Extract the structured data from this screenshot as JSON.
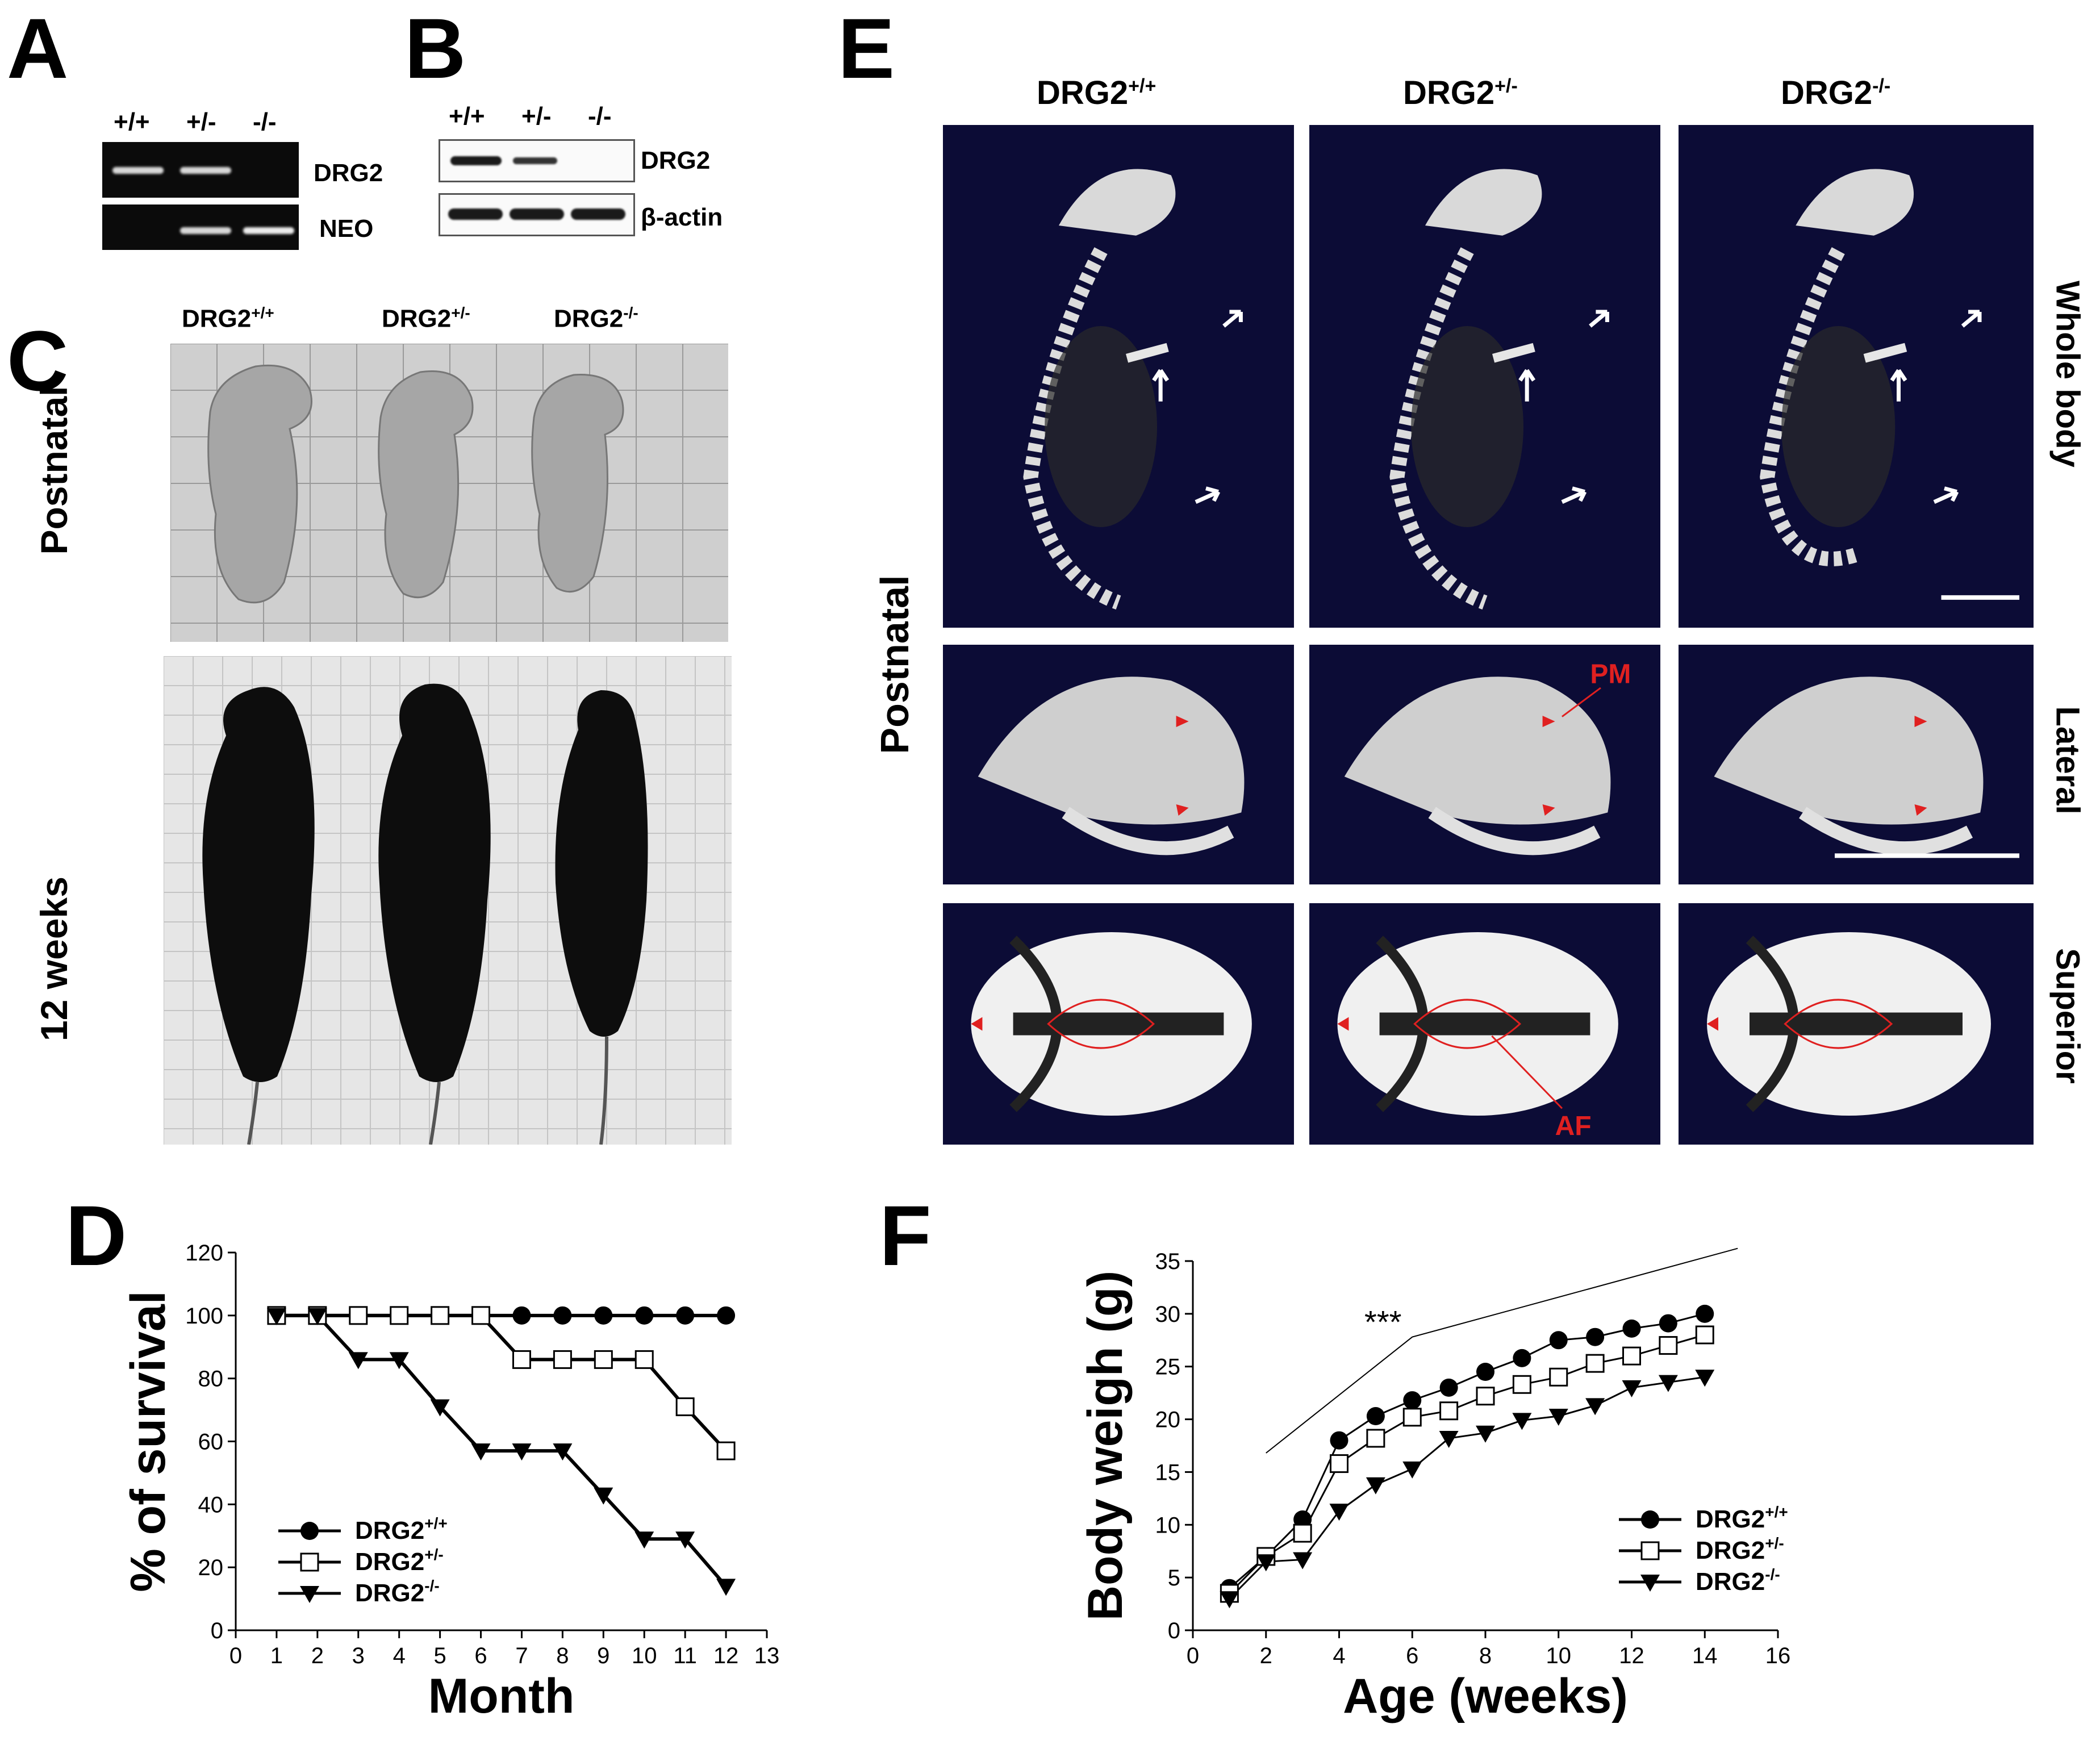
{
  "panel_letters": {
    "a": "A",
    "b": "B",
    "c": "C",
    "d": "D",
    "e": "E",
    "f": "F"
  },
  "panel_a": {
    "lanes": [
      "+/+",
      "+/-",
      "-/-"
    ],
    "rows": [
      "DRG2",
      "NEO"
    ]
  },
  "panel_b": {
    "lanes": [
      "+/+",
      "+/-",
      "-/-"
    ],
    "rows": [
      "DRG2",
      "β-actin"
    ]
  },
  "genotypes": {
    "wt": {
      "base": "DRG2",
      "sup": "+/+"
    },
    "het": {
      "base": "DRG2",
      "sup": "+/-"
    },
    "ko": {
      "base": "DRG2",
      "sup": "-/-"
    }
  },
  "panel_c": {
    "row_labels": [
      "Postnatal",
      "12 weeks"
    ]
  },
  "panel_e": {
    "side_label": "Postnatal",
    "row_labels": [
      "Whole body",
      "Lateral",
      "Superior"
    ],
    "annotations": [
      "PM",
      "AF"
    ]
  },
  "colors": {
    "ct_background": "#0c0c36",
    "annotation_red": "#e02020",
    "line_black": "#000000"
  },
  "chart_data": [
    {
      "panel": "D",
      "type": "line",
      "xlabel": "Month",
      "ylabel": "% of survival",
      "xlim": [
        0,
        13
      ],
      "ylim": [
        0,
        120
      ],
      "xticks": [
        0,
        1,
        2,
        3,
        4,
        5,
        6,
        7,
        8,
        9,
        10,
        11,
        12,
        13
      ],
      "yticks": [
        0,
        20,
        40,
        60,
        80,
        100,
        120
      ],
      "legend_position": "bottom-left",
      "step": true,
      "x": [
        1,
        2,
        3,
        4,
        5,
        6,
        7,
        8,
        9,
        10,
        11,
        12
      ],
      "series": [
        {
          "name": "DRG2+/+",
          "marker": "filled-circle",
          "values": [
            100,
            100,
            100,
            100,
            100,
            100,
            100,
            100,
            100,
            100,
            100,
            100
          ]
        },
        {
          "name": "DRG2+/-",
          "marker": "open-square",
          "values": [
            100,
            100,
            100,
            100,
            100,
            100,
            86,
            86,
            86,
            86,
            71,
            57
          ]
        },
        {
          "name": "DRG2-/-",
          "marker": "filled-triangle-down",
          "values": [
            100,
            100,
            86,
            86,
            71,
            57,
            57,
            57,
            43,
            29,
            29,
            14
          ]
        }
      ]
    },
    {
      "panel": "F",
      "type": "line",
      "xlabel": "Age (weeks)",
      "ylabel": "Body weigh (g)",
      "xlim": [
        0,
        16
      ],
      "ylim": [
        0,
        35
      ],
      "xticks": [
        0,
        2,
        4,
        6,
        8,
        10,
        12,
        14,
        16
      ],
      "yticks": [
        0,
        5,
        10,
        15,
        20,
        25,
        30,
        35
      ],
      "legend_position": "bottom-right",
      "significance": "***",
      "x": [
        1,
        2,
        3,
        4,
        5,
        6,
        7,
        8,
        9,
        10,
        11,
        12,
        13,
        14
      ],
      "series": [
        {
          "name": "DRG2+/+",
          "marker": "filled-circle",
          "values": [
            4,
            7,
            10.5,
            18,
            20.3,
            21.8,
            23,
            24.5,
            25.8,
            27.5,
            27.8,
            28.6,
            29.1,
            30
          ]
        },
        {
          "name": "DRG2+/-",
          "marker": "open-square",
          "values": [
            3.5,
            7,
            9.2,
            15.8,
            18.2,
            20.2,
            20.8,
            22.2,
            23.3,
            24,
            25.3,
            26,
            27,
            28
          ]
        },
        {
          "name": "DRG2-/-",
          "marker": "filled-triangle-down",
          "values": [
            3,
            6.5,
            6.7,
            11.3,
            13.8,
            15.3,
            18.2,
            18.7,
            19.9,
            20.3,
            21.3,
            23,
            23.5,
            24
          ]
        }
      ]
    }
  ]
}
